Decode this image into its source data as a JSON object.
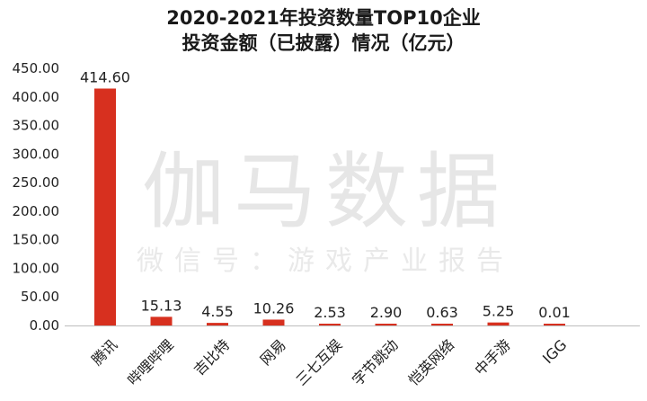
{
  "chart_data": {
    "type": "bar",
    "title_lines": [
      "2020-2021年投资数量TOP10企业",
      "投资金额（已披露）情况（亿元）"
    ],
    "categories": [
      "腾讯",
      "哔哩哔哩",
      "吉比特",
      "网易",
      "三七互娱",
      "字节跳动",
      "恺英网络",
      "中手游",
      "IGG"
    ],
    "values": [
      414.6,
      15.13,
      4.55,
      10.26,
      2.53,
      2.9,
      0.63,
      5.25,
      0.01
    ],
    "data_labels": [
      "414.60",
      "15.13",
      "4.55",
      "10.26",
      "2.53",
      "2.90",
      "0.63",
      "5.25",
      "0.01"
    ],
    "y_ticks": [
      "0.00",
      "50.00",
      "100.00",
      "150.00",
      "200.00",
      "250.00",
      "300.00",
      "350.00",
      "400.00",
      "450.00"
    ],
    "ylim": [
      0,
      450
    ],
    "bar_color": "#d7301f",
    "grid": false,
    "legend": "none"
  },
  "watermark": {
    "main": "伽马数据",
    "sub": "微信号：游戏产业报告"
  }
}
